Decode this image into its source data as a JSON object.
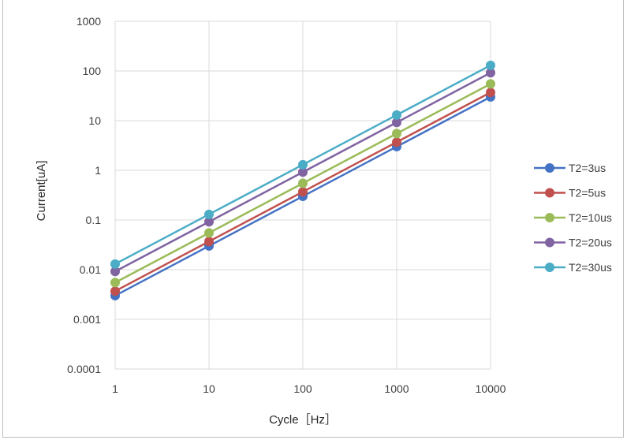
{
  "chart_data": {
    "type": "line",
    "title": "",
    "xlabel": "Cycle［Hz］",
    "ylabel": "Current[uA]",
    "x_scale": "log",
    "y_scale": "log",
    "x": [
      1,
      10,
      100,
      1000,
      10000
    ],
    "x_tick_labels": [
      "1",
      "10",
      "100",
      "1000",
      "10000"
    ],
    "y_tick_labels": [
      "0.0001",
      "0.001",
      "0.01",
      "0.1",
      "1",
      "10",
      "100",
      "1000"
    ],
    "y_ticks": [
      0.0001,
      0.001,
      0.01,
      0.1,
      1,
      10,
      100,
      1000
    ],
    "xlim": [
      1,
      10000
    ],
    "ylim": [
      0.0001,
      1000
    ],
    "grid": true,
    "legend_position": "right",
    "series": [
      {
        "name": "T2=3us",
        "color": "#4472c4",
        "values": [
          0.003,
          0.03,
          0.3,
          3,
          30
        ]
      },
      {
        "name": "T2=5us",
        "color": "#c0504d",
        "values": [
          0.0037,
          0.037,
          0.37,
          3.7,
          37
        ]
      },
      {
        "name": "T2=10us",
        "color": "#9bbb59",
        "values": [
          0.0055,
          0.055,
          0.55,
          5.5,
          55
        ]
      },
      {
        "name": "T2=20us",
        "color": "#8064a2",
        "values": [
          0.0092,
          0.092,
          0.92,
          9.2,
          92
        ]
      },
      {
        "name": "T2=30us",
        "color": "#4bacc6",
        "values": [
          0.013,
          0.13,
          1.3,
          13,
          130
        ]
      }
    ]
  }
}
